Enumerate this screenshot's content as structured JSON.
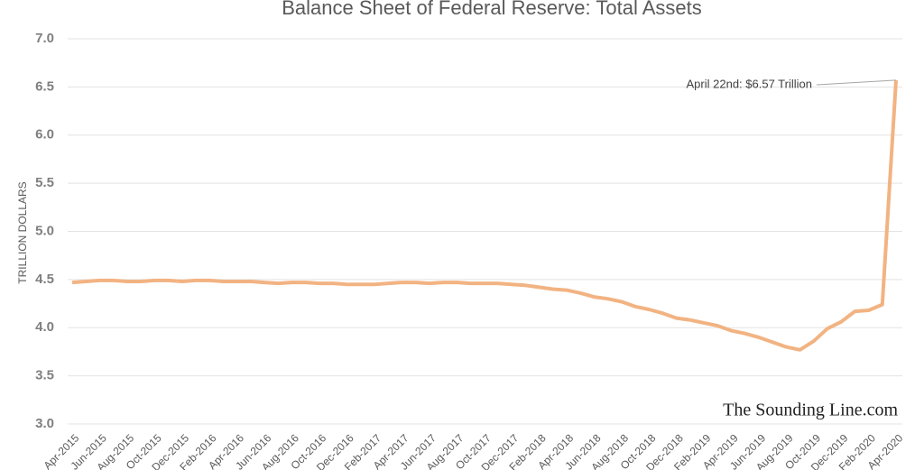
{
  "chart_data": {
    "type": "line",
    "title": "Balance Sheet of Federal Reserve: Total Assets",
    "y_label": "TRILLION DOLLARS",
    "annotation": "April 22nd: $6.57 Trillion",
    "watermark": "The Sounding Line.com",
    "color": "#f2b382",
    "grid": true,
    "ylim": [
      3,
      7
    ],
    "yticks": [
      {
        "value": 3,
        "label": "3.0"
      },
      3.5,
      {
        "value": 4,
        "label": "4.0"
      },
      4.5,
      {
        "value": 5,
        "label": "5.0"
      },
      5.5,
      {
        "value": 6,
        "label": "6.0"
      },
      6.5,
      {
        "value": 7,
        "label": "7.0"
      }
    ],
    "categories": [
      "Apr-2015",
      null,
      "Jun-2015",
      null,
      "Aug-2015",
      null,
      "Oct-2015",
      null,
      "Dec-2015",
      null,
      "Feb-2016",
      null,
      "Apr-2016",
      null,
      "Jun-2016",
      null,
      "Aug-2016",
      null,
      "Oct-2016",
      null,
      "Dec-2016",
      null,
      "Feb-2017",
      null,
      "Apr-2017",
      null,
      "Jun-2017",
      null,
      "Aug-2017",
      null,
      "Oct-2017",
      null,
      "Dec-2017",
      null,
      "Feb-2018",
      null,
      "Apr-2018",
      null,
      "Jun-2018",
      null,
      "Aug-2018",
      null,
      "Oct-2018",
      null,
      "Dec-2018",
      null,
      "Feb-2019",
      null,
      "Apr-2019",
      null,
      "Jun-2019",
      null,
      "Aug-2019",
      null,
      "Oct-2019",
      null,
      "Dec-2019",
      null,
      "Feb-2020",
      null,
      "Apr-2020"
    ],
    "values": [
      4.47,
      4.48,
      4.49,
      4.49,
      4.48,
      4.48,
      4.49,
      4.49,
      4.48,
      4.49,
      4.49,
      4.48,
      4.48,
      4.48,
      4.47,
      4.46,
      4.47,
      4.47,
      4.46,
      4.46,
      4.45,
      4.45,
      4.45,
      4.46,
      4.47,
      4.47,
      4.46,
      4.47,
      4.47,
      4.46,
      4.46,
      4.46,
      4.45,
      4.44,
      4.42,
      4.4,
      4.39,
      4.36,
      4.32,
      4.3,
      4.27,
      4.22,
      4.19,
      4.15,
      4.1,
      4.08,
      4.05,
      4.02,
      3.97,
      3.94,
      3.9,
      3.85,
      3.8,
      3.77,
      3.86,
      3.99,
      4.06,
      4.17,
      4.18,
      4.24,
      6.57
    ]
  }
}
